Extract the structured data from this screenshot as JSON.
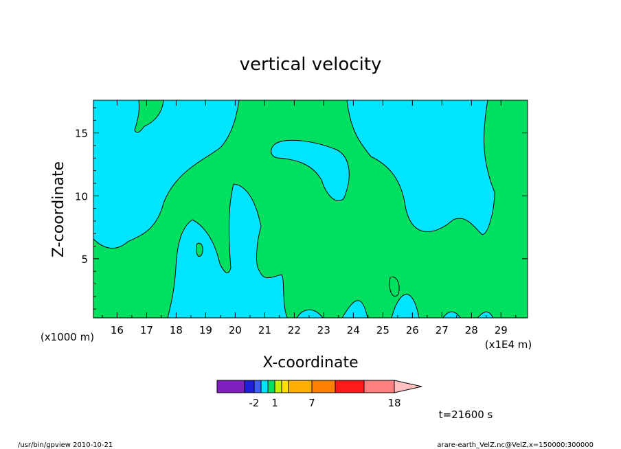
{
  "chart_data": {
    "type": "heatmap",
    "title": "vertical velocity",
    "xlabel": "X-coordinate",
    "ylabel": "Z-coordinate",
    "x_unit_label": "(x1E4 m)",
    "y_unit_label": "(x1000 m)",
    "x_ticks": [
      "16",
      "17",
      "18",
      "19",
      "20",
      "21",
      "22",
      "23",
      "24",
      "25",
      "26",
      "27",
      "28",
      "29"
    ],
    "y_ticks": [
      "5",
      "10",
      "15"
    ],
    "xlim": [
      15.2,
      29.9
    ],
    "ylim": [
      0.3,
      17.6
    ],
    "colorbar": {
      "label_values": [
        "-2",
        "1",
        "7",
        "18"
      ],
      "colors": [
        "#7f1fbf",
        "#1f1fd9",
        "#3f5fff",
        "#00e5ff",
        "#00e060",
        "#c8f000",
        "#ffe000",
        "#ffb000",
        "#ff8000",
        "#ff1a1a",
        "#ff8080",
        "#ffc0c0"
      ]
    },
    "fill_colors": {
      "background": "#00e5ff",
      "band": "#00e060"
    },
    "time_label": "t=21600 s",
    "footer_left": "/usr/bin/gpview   2010-10-21",
    "footer_right": "arare-earth_VelZ.nc@VelZ,x=150000:300000"
  }
}
